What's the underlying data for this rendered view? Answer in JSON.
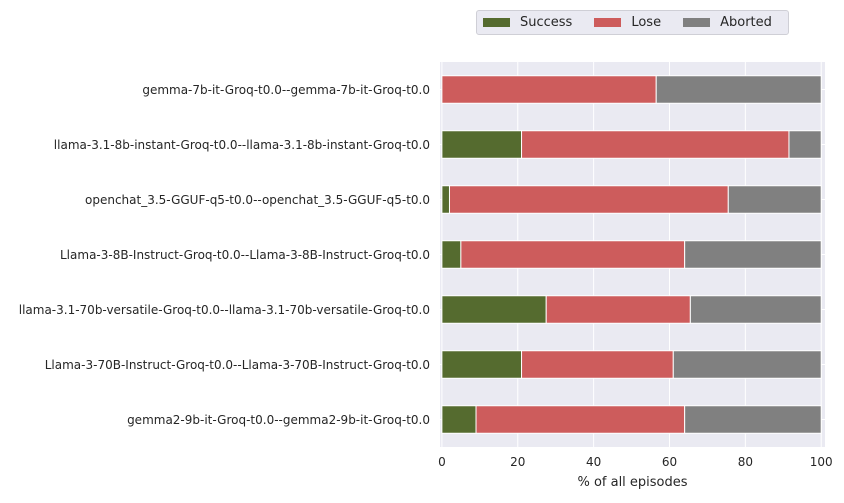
{
  "chart_data": {
    "type": "bar",
    "orientation": "horizontal",
    "stacked": true,
    "categories": [
      "gemma-7b-it-Groq-t0.0--gemma-7b-it-Groq-t0.0",
      "llama-3.1-8b-instant-Groq-t0.0--llama-3.1-8b-instant-Groq-t0.0",
      "openchat_3.5-GGUF-q5-t0.0--openchat_3.5-GGUF-q5-t0.0",
      "Llama-3-8B-Instruct-Groq-t0.0--Llama-3-8B-Instruct-Groq-t0.0",
      "llama-3.1-70b-versatile-Groq-t0.0--llama-3.1-70b-versatile-Groq-t0.0",
      "Llama-3-70B-Instruct-Groq-t0.0--Llama-3-70B-Instruct-Groq-t0.0",
      "gemma2-9b-it-Groq-t0.0--gemma2-9b-it-Groq-t0.0"
    ],
    "series": [
      {
        "name": "Success",
        "color": "#556b2f",
        "values": [
          0,
          21,
          2,
          5,
          27.5,
          21,
          9
        ]
      },
      {
        "name": "Lose",
        "color": "#cd5c5c",
        "values": [
          56.5,
          70.5,
          73.5,
          59,
          38,
          40,
          55
        ]
      },
      {
        "name": "Aborted",
        "color": "#808080",
        "values": [
          43.5,
          8.5,
          24.5,
          36,
          34.5,
          39,
          36
        ]
      }
    ],
    "xlabel": "% of all episodes",
    "ylabel": "",
    "xlim": [
      -0.5,
      101
    ],
    "xticks": [
      "0",
      "20",
      "40",
      "60",
      "80",
      "100"
    ],
    "grid": true,
    "legend_position": "top-right",
    "background": "#eaeaf2"
  }
}
